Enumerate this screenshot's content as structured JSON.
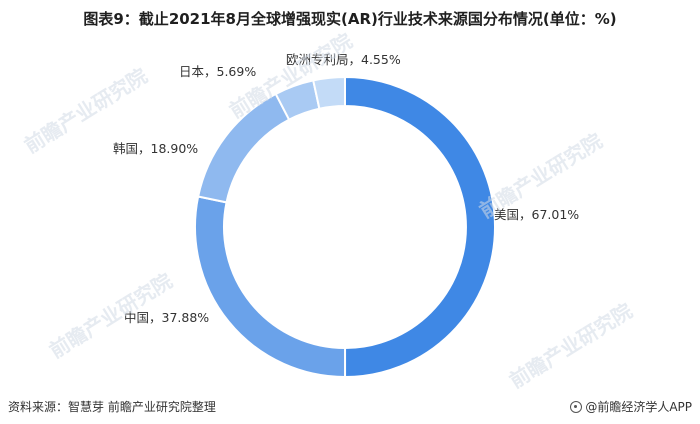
{
  "title": "图表9：截止2021年8月全球增强现实(AR)行业技术来源国分布情况(单位：%)",
  "chart_data": {
    "type": "pie",
    "variant": "donut",
    "slices": [
      {
        "name": "美国",
        "value": 67.01,
        "label": "美国，67.01%",
        "color": "#3f88e5"
      },
      {
        "name": "中国",
        "value": 37.88,
        "label": "中国，37.88%",
        "color": "#6aa2ea"
      },
      {
        "name": "韩国",
        "value": 18.9,
        "label": "韩国，18.90%",
        "color": "#8fb9ef"
      },
      {
        "name": "日本",
        "value": 5.69,
        "label": "日本，5.69%",
        "color": "#a9caf3"
      },
      {
        "name": "欧洲专利局",
        "value": 4.55,
        "label": "欧洲专利局，4.55%",
        "color": "#c3dbf7"
      }
    ],
    "legend": "none"
  },
  "footer": {
    "source": "资料来源：智慧芽 前瞻产业研究院整理",
    "brand": "@前瞻经济学人APP"
  },
  "watermark": "前瞻产业研究院"
}
